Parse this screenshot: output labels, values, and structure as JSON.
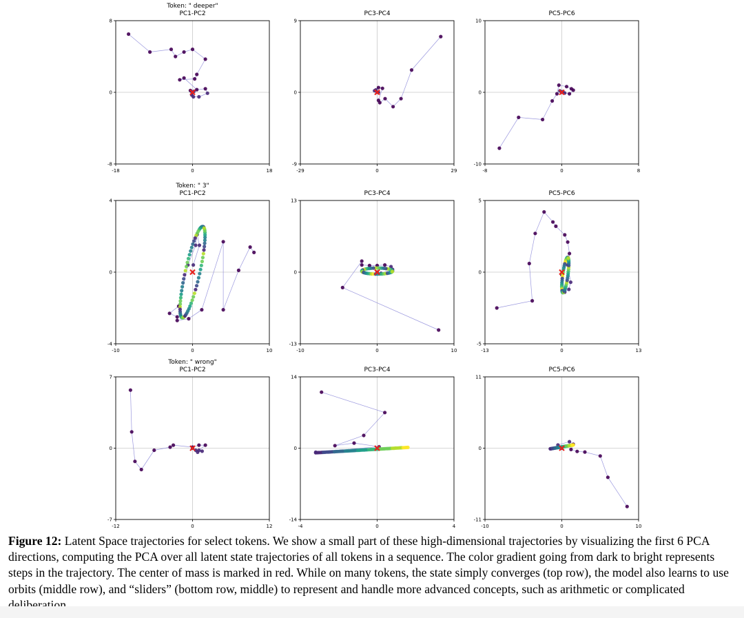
{
  "caption": {
    "label": "Figure 12:",
    "text": " Latent Space trajectories for select tokens. We show a small part of these high-dimensional trajectories by visualizing the first 6 PCA directions, computing the PCA over all latent state trajectories of all tokens in a sequence. The color gradient going from dark to bright represents steps in the trajectory. The center of mass is marked in red. While on many tokens, the state simply converges (top row), the model also learns to use orbits (middle row), and “sliders” (bottom row, middle) to represent and handle more advanced concepts, such as arithmetic or complicated deliberation."
  },
  "colors": {
    "path": "#8a86d8",
    "center_marker": "#e8211b",
    "axes": "#000000",
    "crosshair": "#c8c8c8",
    "viridis": [
      "#440154",
      "#482878",
      "#3e4989",
      "#31688e",
      "#26828e",
      "#1f9e89",
      "#35b779",
      "#6ece58",
      "#b5de2b",
      "#fde725"
    ]
  },
  "chart_data": [
    {
      "type": "scatter",
      "row_title": "Token: \" deeper\"",
      "title": "PC1-PC2",
      "xlim": [
        -18,
        18
      ],
      "ylim": [
        -8,
        8
      ],
      "xticks": [
        "-18",
        "0",
        "18"
      ],
      "yticks": [
        "-8",
        "0",
        "8"
      ],
      "trajectory": [
        [
          -15,
          6.5
        ],
        [
          -10,
          4.5
        ],
        [
          -5,
          4.8
        ],
        [
          -4,
          4
        ],
        [
          -2,
          4.5
        ],
        [
          0,
          4.8
        ],
        [
          3,
          3.7
        ],
        [
          1,
          2
        ],
        [
          0.5,
          1.5
        ],
        [
          -3,
          1.4
        ],
        [
          -2,
          1.6
        ],
        [
          1,
          0.3
        ],
        [
          -0.5,
          0.2
        ],
        [
          3,
          0.4
        ],
        [
          3.5,
          -0.1
        ],
        [
          1.5,
          -0.5
        ],
        [
          0.2,
          -0.5
        ],
        [
          -0.2,
          -0.3
        ],
        [
          0.3,
          0.1
        ],
        [
          -0.1,
          0
        ]
      ],
      "center": [
        0,
        0
      ]
    },
    {
      "type": "scatter",
      "title": "PC3-PC4",
      "xlim": [
        -29,
        29
      ],
      "ylim": [
        -9,
        9
      ],
      "xticks": [
        "-29",
        "0",
        "29"
      ],
      "yticks": [
        "-9",
        "0",
        "9"
      ],
      "trajectory": [
        [
          24,
          7
        ],
        [
          13,
          2.8
        ],
        [
          9,
          -0.8
        ],
        [
          6,
          -1.8
        ],
        [
          3,
          -0.8
        ],
        [
          1,
          -1.3
        ],
        [
          0.5,
          -1
        ],
        [
          2,
          0.5
        ],
        [
          0.5,
          0.6
        ],
        [
          -1,
          0.2
        ],
        [
          0.5,
          0
        ],
        [
          -0.5,
          0.3
        ],
        [
          0,
          0
        ]
      ],
      "center": [
        0,
        0
      ]
    },
    {
      "type": "scatter",
      "title": "PC5-PC6",
      "xlim": [
        -8,
        8
      ],
      "ylim": [
        -10,
        10
      ],
      "xticks": [
        "-8",
        "0",
        "8"
      ],
      "yticks": [
        "-10",
        "0",
        "10"
      ],
      "trajectory": [
        [
          -6.5,
          -7.8
        ],
        [
          -4.5,
          -3.5
        ],
        [
          -2,
          -3.8
        ],
        [
          -1,
          -1.2
        ],
        [
          -0.5,
          -0.2
        ],
        [
          -0.3,
          1
        ],
        [
          0.5,
          0.8
        ],
        [
          1,
          0.5
        ],
        [
          1.2,
          0.3
        ],
        [
          0.8,
          -0.2
        ],
        [
          0.3,
          -0.1
        ],
        [
          -0.2,
          0.2
        ],
        [
          0.1,
          0.1
        ],
        [
          0,
          0
        ]
      ],
      "center": [
        0,
        0
      ]
    },
    {
      "type": "scatter",
      "row_title": "Token: \" 3\"",
      "title": "PC1-PC2",
      "xlim": [
        -10,
        10
      ],
      "ylim": [
        -4,
        4
      ],
      "xticks": [
        "-10",
        "0",
        "10"
      ],
      "yticks": [
        "-4",
        "0",
        "4"
      ],
      "trajectory": [
        [
          8,
          1.1
        ],
        [
          7.5,
          1.4
        ],
        [
          6,
          0.1
        ],
        [
          4,
          -2.1
        ],
        [
          4,
          1.7
        ],
        [
          1.2,
          -2.1
        ],
        [
          -0.5,
          -2.6
        ],
        [
          -2,
          -2.7
        ],
        [
          -2,
          -2.5
        ],
        [
          -3,
          -2.3
        ],
        [
          -1.8,
          -1.9
        ],
        [
          -0.6,
          0.4
        ],
        [
          0.4,
          1.5
        ],
        [
          0.6,
          2.1
        ],
        [
          0.9,
          1.5
        ],
        [
          0.1,
          0.4
        ]
      ],
      "orbit": {
        "cx": 0,
        "cy": 0,
        "a": 2.9,
        "b": 0.85,
        "angle_deg": 60,
        "n": 70
      },
      "center": [
        0,
        0
      ]
    },
    {
      "type": "scatter",
      "title": "PC3-PC4",
      "xlim": [
        -10,
        10
      ],
      "ylim": [
        -13,
        13
      ],
      "xticks": [
        "-10",
        "0",
        "10"
      ],
      "yticks": [
        "-13",
        "0",
        "13"
      ],
      "trajectory": [
        [
          8,
          -10.5
        ],
        [
          -4.5,
          -2.8
        ],
        [
          -2,
          2
        ],
        [
          -2,
          1.3
        ],
        [
          -1,
          1.2
        ],
        [
          0,
          1.2
        ],
        [
          1,
          1.3
        ],
        [
          1.8,
          1.0
        ],
        [
          2,
          0.5
        ],
        [
          0.5,
          -0.2
        ],
        [
          0,
          0
        ]
      ],
      "orbit": {
        "cx": 0,
        "cy": 0.2,
        "a": 2.0,
        "b": 0.55,
        "angle_deg": 0,
        "n": 45
      },
      "center": [
        0,
        0
      ]
    },
    {
      "type": "scatter",
      "title": "PC5-PC6",
      "xlim": [
        -13,
        13
      ],
      "ylim": [
        -5,
        5
      ],
      "xticks": [
        "-13",
        "0",
        "13"
      ],
      "yticks": [
        "-5",
        "0",
        "5"
      ],
      "trajectory": [
        [
          -11,
          -2.5
        ],
        [
          -5,
          -2
        ],
        [
          -5.5,
          0.6
        ],
        [
          -4.5,
          2.7
        ],
        [
          -3,
          4.2
        ],
        [
          -1.5,
          3.5
        ],
        [
          -1,
          3.2
        ],
        [
          0.5,
          2.6
        ],
        [
          1,
          2.1
        ],
        [
          1.3,
          1.3
        ],
        [
          1,
          0.5
        ],
        [
          1.5,
          -0.7
        ],
        [
          1.2,
          -1.2
        ],
        [
          0.5,
          -1.4
        ],
        [
          0,
          -0.2
        ]
      ],
      "orbit": {
        "cx": 0.6,
        "cy": -0.2,
        "a": 1.3,
        "b": 0.42,
        "angle_deg": 70,
        "n": 50
      },
      "center": [
        0,
        0
      ]
    },
    {
      "type": "scatter",
      "row_title": "Token: \" wrong\"",
      "title": "PC1-PC2",
      "xlim": [
        -12,
        12
      ],
      "ylim": [
        -7,
        7
      ],
      "xticks": [
        "-12",
        "0",
        "12"
      ],
      "yticks": [
        "-7",
        "0",
        "7"
      ],
      "trajectory": [
        [
          -9.7,
          5.7
        ],
        [
          -9.5,
          1.6
        ],
        [
          -9,
          -1.3
        ],
        [
          -8,
          -2.1
        ],
        [
          -6,
          -0.2
        ],
        [
          -3.5,
          0.1
        ],
        [
          -3,
          0.3
        ],
        [
          0,
          0.1
        ],
        [
          1,
          0.3
        ],
        [
          2,
          0.3
        ],
        [
          1,
          -0.2
        ],
        [
          1.5,
          -0.3
        ],
        [
          0.8,
          -0.4
        ],
        [
          0.5,
          -0.2
        ],
        [
          0,
          0
        ]
      ],
      "center": [
        0,
        0
      ]
    },
    {
      "type": "scatter",
      "title": "PC3-PC4",
      "xlim": [
        -4,
        4
      ],
      "ylim": [
        -14,
        14
      ],
      "xticks": [
        "-4",
        "0",
        "4"
      ],
      "yticks": [
        "-14",
        "0",
        "14"
      ],
      "trajectory": [
        [
          -2.9,
          11
        ],
        [
          0.4,
          7
        ],
        [
          -0.7,
          2.5
        ],
        [
          -2.2,
          0.5
        ],
        [
          -1.2,
          1
        ],
        [
          0.1,
          0.3
        ],
        [
          -3.2,
          -0.8
        ]
      ],
      "slider": {
        "x0": -3.2,
        "y0": -0.9,
        "x1": 1.6,
        "y1": 0.15,
        "n": 60
      },
      "center": [
        0,
        0
      ]
    },
    {
      "type": "scatter",
      "title": "PC5-PC6",
      "xlim": [
        -10,
        10
      ],
      "ylim": [
        -11,
        11
      ],
      "xticks": [
        "-10",
        "0",
        "10"
      ],
      "yticks": [
        "-11",
        "0",
        "11"
      ],
      "trajectory": [
        [
          8.5,
          -9
        ],
        [
          6,
          -4.5
        ],
        [
          5,
          -1.2
        ],
        [
          3,
          -0.6
        ],
        [
          2,
          -0.5
        ],
        [
          1.2,
          -0.2
        ],
        [
          1.5,
          0.6
        ],
        [
          1,
          1
        ],
        [
          -0.5,
          0.5
        ],
        [
          0,
          0
        ]
      ],
      "slider": {
        "x0": -1.5,
        "y0": -0.1,
        "x1": 1.5,
        "y1": 0.5,
        "n": 35
      },
      "center": [
        0,
        0
      ]
    }
  ]
}
